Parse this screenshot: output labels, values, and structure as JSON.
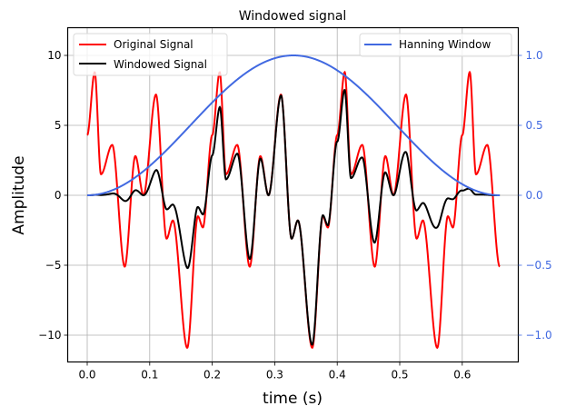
{
  "chart_data": {
    "type": "line",
    "title": "Windowed signal",
    "xlabel": "time (s)",
    "ylabel": "Amplitude",
    "xlim": [
      -0.032,
      0.69
    ],
    "ylim": [
      -12,
      12
    ],
    "y2lim": [
      -1.2,
      1.2
    ],
    "grid": true,
    "x_ticks": [
      0.0,
      0.1,
      0.2,
      0.3,
      0.4,
      0.5,
      0.6
    ],
    "x_tick_labels": [
      "0.0",
      "0.1",
      "0.2",
      "0.3",
      "0.4",
      "0.5",
      "0.6"
    ],
    "y_ticks": [
      10,
      5,
      0,
      -5,
      -10
    ],
    "y_tick_labels": [
      "10",
      "5",
      "0",
      "−5",
      "−10"
    ],
    "y2_ticks": [
      1.0,
      0.5,
      0.0,
      -0.5,
      -1.0
    ],
    "y2_tick_labels": [
      "1.0",
      "0.5",
      "0.0",
      "−0.5",
      "−1.0"
    ],
    "t_range": [
      0,
      0.66
    ],
    "period": 0.2,
    "original_keypoints": {
      "t": [
        0.0,
        0.012,
        0.022,
        0.04,
        0.06,
        0.077,
        0.09,
        0.11,
        0.127,
        0.137,
        0.16,
        0.177,
        0.185,
        0.2
      ],
      "y": [
        4.3,
        8.8,
        1.5,
        3.6,
        -5.1,
        2.8,
        0.0,
        7.2,
        -3.1,
        -1.8,
        -10.9,
        -1.5,
        -2.3,
        4.3
      ]
    },
    "series": [
      {
        "name": "Original Signal",
        "color": "#ff0000",
        "axis": "left"
      },
      {
        "name": "Windowed Signal",
        "color": "#000000",
        "axis": "left"
      },
      {
        "name": "Hanning Window",
        "color": "#4169e1",
        "axis": "right",
        "peak": 1.0,
        "peak_t": 0.33
      }
    ],
    "legends": [
      {
        "position": "upper left",
        "entries": [
          "Original Signal",
          "Windowed Signal"
        ]
      },
      {
        "position": "upper right",
        "entries": [
          "Hanning Window"
        ]
      }
    ]
  }
}
